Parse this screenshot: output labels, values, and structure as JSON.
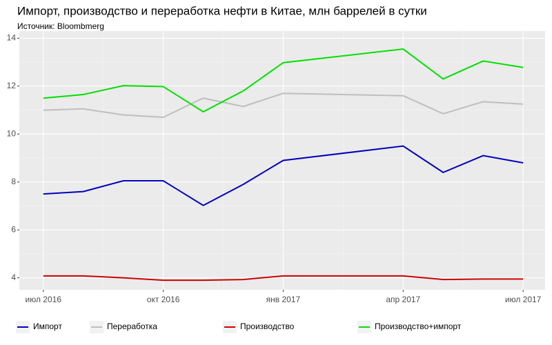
{
  "chart_data": {
    "type": "line",
    "title": "Импорт, производство и переработка нефти в Китае, млн баррелей в сутки",
    "subtitle": "Источник: Bloombmerg",
    "x": [
      "2016-07",
      "2016-08",
      "2016-09",
      "2016-10",
      "2016-11",
      "2016-12",
      "2017-01",
      "2017-04",
      "2017-05",
      "2017-06",
      "2017-07"
    ],
    "series": [
      {
        "name": "Импорт",
        "color": "#0000c0",
        "values": [
          7.5,
          7.6,
          8.05,
          8.05,
          7.02,
          7.9,
          8.9,
          9.5,
          8.4,
          9.1,
          8.8
        ]
      },
      {
        "name": "Переработка",
        "color": "#bebebe",
        "values": [
          11.0,
          11.05,
          10.8,
          10.7,
          11.5,
          11.15,
          11.7,
          11.6,
          10.85,
          11.35,
          11.25
        ]
      },
      {
        "name": "Производство",
        "color": "#cc0000",
        "values": [
          4.08,
          4.08,
          4.0,
          3.9,
          3.9,
          3.93,
          4.08,
          4.08,
          3.93,
          3.95,
          3.95
        ]
      },
      {
        "name": "Производство+импорт",
        "color": "#00e000",
        "values": [
          11.5,
          11.65,
          12.02,
          11.98,
          10.93,
          11.8,
          12.98,
          13.55,
          12.3,
          13.05,
          12.78
        ]
      }
    ],
    "ylim": [
      3.5,
      14.3
    ],
    "yticks": [
      4,
      6,
      8,
      10,
      12,
      14
    ],
    "xticks": [
      {
        "value": "2016-07",
        "label": "июл 2016"
      },
      {
        "value": "2016-10",
        "label": "окт 2016"
      },
      {
        "value": "2017-01",
        "label": "янв 2017"
      },
      {
        "value": "2017-04",
        "label": "апр 2017"
      },
      {
        "value": "2017-07",
        "label": "июл 2017"
      }
    ],
    "grid": true,
    "legend": "bottom"
  }
}
